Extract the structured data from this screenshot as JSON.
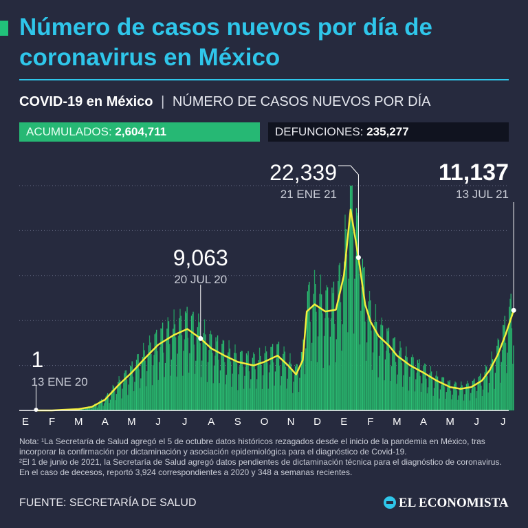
{
  "header": {
    "title": "Número de casos nuevos por día de coronavirus en México",
    "subtitle_bold": "COVID-19 en México",
    "subtitle_separator": "|",
    "subtitle_rest": "NÚMERO DE CASOS NUEVOS POR DÍA"
  },
  "stats": {
    "acumulados_label": "ACUMULADOS:",
    "acumulados_value": "2,604,711",
    "defunciones_label": "DEFUNCIONES:",
    "defunciones_value": "235,277"
  },
  "colors": {
    "background": "#262a3e",
    "title": "#2fc6ea",
    "bars": "#2bbf74",
    "trend_line": "#f4ee3c",
    "acumulados_box": "#26b874",
    "defunciones_box": "#10131f"
  },
  "chart_data": {
    "type": "bar",
    "x_tick_labels": [
      "E",
      "F",
      "M",
      "A",
      "M",
      "J",
      "J",
      "A",
      "S",
      "O",
      "N",
      "D",
      "E",
      "F",
      "M",
      "A",
      "M",
      "J",
      "J"
    ],
    "ylim": [
      0,
      25000
    ],
    "grid": true,
    "trend_x_months": [
      0.4,
      1,
      2,
      2.5,
      3,
      3.5,
      4,
      4.5,
      5,
      5.6,
      6.1,
      6.6,
      7,
      7.5,
      8,
      8.6,
      9,
      9.5,
      9.9,
      10.2,
      10.45,
      10.6,
      10.9,
      11.3,
      11.7,
      12,
      12.25,
      12.55,
      12.8,
      13,
      13.3,
      13.7,
      14,
      14.5,
      15,
      15.5,
      16,
      16.4,
      16.8,
      17.2,
      17.5,
      17.8,
      18.1,
      18.4
    ],
    "trend_values": [
      1,
      0,
      150,
      400,
      1200,
      2800,
      4200,
      5800,
      7300,
      8400,
      9063,
      8000,
      6900,
      6100,
      5400,
      5000,
      5400,
      6100,
      5000,
      4000,
      5600,
      11000,
      11800,
      11000,
      11200,
      15000,
      22339,
      17000,
      11800,
      9900,
      8300,
      7200,
      6100,
      5000,
      4200,
      3300,
      2600,
      2400,
      2600,
      3300,
      4500,
      6200,
      8500,
      11137
    ],
    "annotations": [
      {
        "value": "1",
        "date": "13 ENE 20",
        "x_month": 0.4
      },
      {
        "value": "9,063",
        "date": "20 JUL 20",
        "x_month": 6.6
      },
      {
        "value": "22,339",
        "date": "21 ENE 21",
        "x_month": 12.55
      },
      {
        "value": "11,137",
        "date": "13 JUL 21",
        "x_month": 18.4
      }
    ]
  },
  "notes": [
    "Nota: ¹La Secretaría de Salud agregó el 5 de octubre datos históricos rezagados desde el inicio de la pandemia en México, tras incorporar la confirmación por dictaminación y asociación epidemiológica para el diagnóstico de Covid-19.",
    "²El 1 de junio de 2021, la Secretaría de Salud agregó datos pendientes de dictaminación técnica para el diagnóstico de coronavirus. En el caso de decesos, reportó 3,924 correspondientes a 2020 y 348 a semanas recientes."
  ],
  "footer": {
    "source": "FUENTE: SECRETARÍA DE SALUD",
    "brand": "EL ECONOMISTA"
  }
}
